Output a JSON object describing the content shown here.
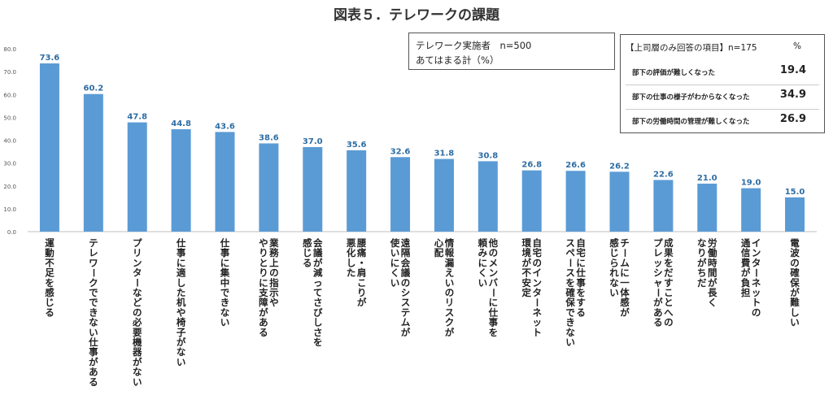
{
  "title": "図表５．テレワークの課題",
  "legend": {
    "line1": "テレワーク実施者　n=500",
    "line2": "あてはまる計（%）"
  },
  "sub_table": {
    "header": "【上司層のみ回答の項目】n=175",
    "pct_header": "%",
    "rows": [
      {
        "label": "部下の評価が難しくなった",
        "value": "19.4"
      },
      {
        "label": "部下の仕事の様子がわからなくなった",
        "value": "34.9"
      },
      {
        "label": "部下の労働時間の管理が難しくなった",
        "value": "26.9"
      }
    ]
  },
  "colors": {
    "bar": "#5b9bd5",
    "axis": "#bfbfbf"
  },
  "chart_data": {
    "type": "bar",
    "ylim": [
      0,
      80
    ],
    "yticks": [
      "0.0",
      "10.0",
      "20.0",
      "30.0",
      "40.0",
      "50.0",
      "60.0",
      "70.0",
      "80.0"
    ],
    "categories": [
      "運動不足を感じる",
      "テレワークでできない仕事がある",
      "プリンターなどの必要機器がない",
      "仕事に適した机や椅子がない",
      "仕事に集中できない",
      "業務上の指示や|やりとりに支障がある",
      "会議が減ってさびしさを|感じる",
      "腰痛・肩こりが|悪化した",
      "遠隔会議のシステムが|使いにくい",
      "情報漏えいのリスクが|心配",
      "他のメンバーに仕事を|頼みにくい",
      "自宅のインターネット|環境が不安定",
      "自宅に仕事をする|スペースを確保できない",
      "チームに一体感が|感じられない",
      "成果をだすことへの|プレッシャーがある",
      "労働時間が長く|なりがちだ",
      "インターネットの|通信費が負担",
      "電波の確保が難しい"
    ],
    "values": [
      73.6,
      60.2,
      47.8,
      44.8,
      43.6,
      38.6,
      37.0,
      35.6,
      32.6,
      31.8,
      30.8,
      26.8,
      26.6,
      26.2,
      22.6,
      21.0,
      19.0,
      15.0
    ],
    "value_labels": [
      "73.6",
      "60.2",
      "47.8",
      "44.8",
      "43.6",
      "38.6",
      "37.0",
      "35.6",
      "32.6",
      "31.8",
      "30.8",
      "26.8",
      "26.6",
      "26.2",
      "22.6",
      "21.0",
      "19.0",
      "15.0"
    ]
  }
}
